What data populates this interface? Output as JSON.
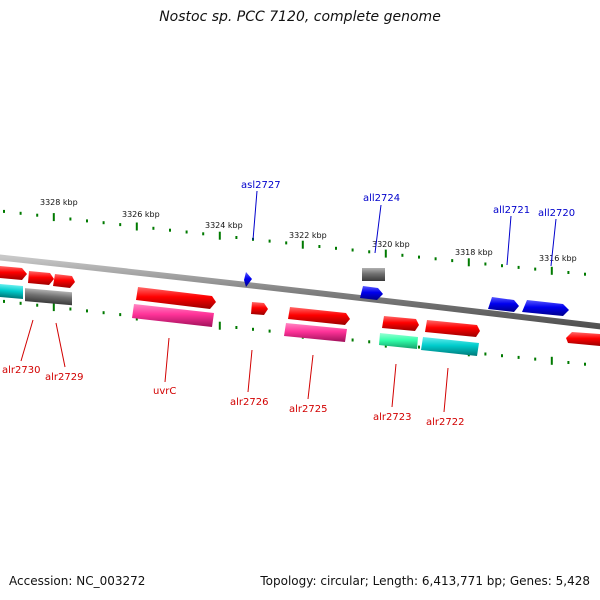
{
  "title": "Nostoc sp. PCC 7120, complete genome",
  "footer": {
    "accession": "Accession: NC_003272",
    "topology": "Topology: circular; Length: 6,413,771 bp; Genes: 5,428"
  },
  "scale_labels": [
    "3328 kbp",
    "3326 kbp",
    "3324 kbp",
    "3322 kbp",
    "3320 kbp",
    "3318 kbp",
    "3316 kbp"
  ],
  "gene_labels": {
    "asl2727": "asl2727",
    "all2724": "all2724",
    "all2721": "all2721",
    "all2720": "all2720",
    "alr2730": "alr2730",
    "alr2729": "alr2729",
    "uvrC": "uvrC",
    "alr2726": "alr2726",
    "alr2725": "alr2725",
    "alr2723": "alr2723",
    "alr2722": "alr2722"
  },
  "colors": {
    "forward_gene": "#ff0000",
    "reverse_gene": "#0000ee",
    "cog_magenta": "#ff3399",
    "cog_cyan": "#00cccc",
    "cog_green": "#33ffaa",
    "cog_gray": "#707070",
    "backbone": "#808080",
    "ticks": "#007a00"
  }
}
